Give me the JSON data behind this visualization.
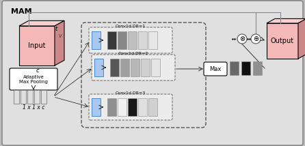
{
  "bg_color": "#e0e0e0",
  "border_color": "#888888",
  "pink_face": "#f5b8b8",
  "pink_top": "#f9d0d0",
  "pink_side": "#cc8888",
  "blue_rect": "#a8c8f0",
  "white_rect": "#ffffff",
  "title": "MAM",
  "input_label": "Input",
  "output_label": "Output",
  "pooling_label": "Adaptive\nMax Pooling",
  "size_label": "1 x 1 x c",
  "conv_labels": [
    "Conv1d,DR=1",
    "Conv1d,DR=2",
    "Conv1d,DR=3"
  ],
  "max_label": "Max",
  "conv1_colors": [
    "#383838",
    "#888888",
    "#c0c0c0",
    "#d8d8d8",
    "#e8e8e8"
  ],
  "conv2_colors": [
    "#585858",
    "#a0a0a0",
    "#b8b8b8",
    "#d0d0d0",
    "#e4e4e4"
  ],
  "conv3_colors": [
    "#909090",
    "#f0f0f0",
    "#181818",
    "#e0e0e0",
    "#d0d0d0"
  ],
  "post_colors": [
    "#686868",
    "#101010",
    "#909090"
  ],
  "skip_color": "#888888",
  "arrow_color": "#333333",
  "op_circle_color": "#ffffff",
  "op_circle_edge": "#555555"
}
